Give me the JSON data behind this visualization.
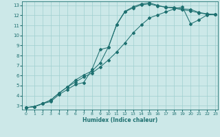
{
  "xlabel": "Humidex (Indice chaleur)",
  "bg_color": "#cce8e8",
  "grid_color": "#9fcfcf",
  "line_color": "#1e7070",
  "xlim": [
    -0.5,
    23.3
  ],
  "ylim": [
    2.6,
    13.4
  ],
  "xticks": [
    0,
    1,
    2,
    3,
    4,
    5,
    6,
    7,
    8,
    9,
    10,
    11,
    12,
    13,
    14,
    15,
    16,
    17,
    18,
    19,
    20,
    21,
    22,
    23
  ],
  "yticks": [
    3,
    4,
    5,
    6,
    7,
    8,
    9,
    10,
    11,
    12,
    13
  ],
  "line1_x": [
    0,
    1,
    2,
    3,
    4,
    5,
    6,
    7,
    8,
    9,
    10,
    11,
    12,
    13,
    14,
    15,
    16,
    17,
    18,
    19,
    20,
    21,
    22,
    23
  ],
  "line1_y": [
    2.8,
    2.9,
    3.2,
    3.4,
    4.1,
    4.6,
    5.1,
    5.3,
    6.6,
    8.6,
    8.8,
    11.1,
    12.4,
    12.85,
    13.15,
    13.25,
    13.0,
    12.8,
    12.8,
    12.65,
    12.6,
    12.3,
    12.15,
    12.1
  ],
  "line2_x": [
    0,
    1,
    2,
    3,
    4,
    5,
    6,
    7,
    8,
    9,
    10,
    11,
    12,
    13,
    14,
    15,
    16,
    17,
    18,
    19,
    20,
    21,
    22,
    23
  ],
  "line2_y": [
    2.8,
    2.9,
    3.2,
    3.55,
    4.25,
    4.85,
    5.55,
    6.05,
    6.45,
    7.25,
    8.85,
    11.05,
    12.35,
    12.75,
    13.05,
    13.15,
    12.95,
    12.82,
    12.72,
    12.55,
    12.45,
    12.25,
    12.12,
    12.1
  ],
  "line3_x": [
    0,
    1,
    2,
    3,
    4,
    5,
    6,
    7,
    8,
    9,
    10,
    11,
    12,
    13,
    14,
    15,
    16,
    17,
    18,
    19,
    20,
    21,
    22,
    23
  ],
  "line3_y": [
    2.8,
    2.9,
    3.2,
    3.55,
    4.25,
    4.85,
    5.35,
    5.85,
    6.25,
    6.85,
    7.55,
    8.35,
    9.25,
    10.25,
    11.05,
    11.75,
    12.05,
    12.35,
    12.65,
    12.85,
    11.15,
    11.55,
    12.05,
    12.1
  ],
  "xlabel_fontsize": 5.5,
  "tick_fontsize_x": 4.5,
  "tick_fontsize_y": 5.0
}
